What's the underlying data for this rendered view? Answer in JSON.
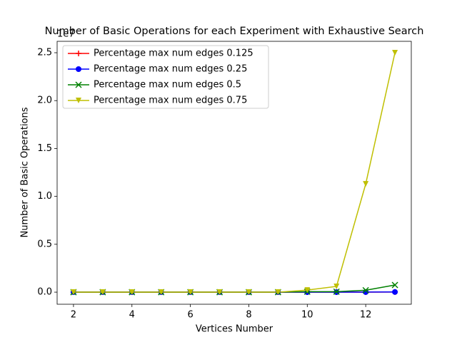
{
  "chart_data": {
    "type": "line",
    "title": "Number of Basic Operations for each Experiment with Exhaustive Search",
    "x_label": "Vertices Number",
    "y_label": "Number of Basic Operations",
    "y_offset_text": "1e7",
    "x": [
      2,
      3,
      4,
      5,
      6,
      7,
      8,
      9,
      10,
      11,
      12,
      13
    ],
    "series": [
      {
        "name": "Percentage max num edges 0.125",
        "color": "#ff0000",
        "marker": "plus",
        "values": [
          0,
          0,
          0,
          0,
          0,
          0,
          0,
          0,
          0,
          0,
          0,
          0.001
        ]
      },
      {
        "name": "Percentage max num edges 0.25",
        "color": "#0000ff",
        "marker": "circle",
        "values": [
          0,
          0,
          0,
          0,
          0,
          0,
          0,
          0,
          0,
          0,
          0.001,
          0.002
        ]
      },
      {
        "name": "Percentage max num edges 0.5",
        "color": "#008000",
        "marker": "x",
        "values": [
          0,
          0,
          0,
          0,
          0,
          0,
          0,
          0,
          0.005,
          0.005,
          0.02,
          0.075
        ]
      },
      {
        "name": "Percentage max num edges 0.75",
        "color": "#bfbf00",
        "marker": "triangle-down",
        "values": [
          0,
          0,
          0,
          0,
          0,
          0,
          0,
          0,
          0.022,
          0.06,
          1.13,
          2.5
        ]
      }
    ],
    "xlim": [
      1.44,
      13.56
    ],
    "ylim": [
      -0.126,
      2.619
    ],
    "xticks": [
      2,
      4,
      6,
      8,
      10,
      12
    ],
    "yticks": [
      {
        "value": 0,
        "label": "0.0"
      },
      {
        "value": 0.5,
        "label": "0.5"
      },
      {
        "value": 1,
        "label": "1.0"
      },
      {
        "value": 1.5,
        "label": "1.5"
      },
      {
        "value": 2,
        "label": "2.0"
      },
      {
        "value": 2.5,
        "label": "2.5"
      }
    ],
    "grid": false,
    "legend": "upper-left"
  }
}
